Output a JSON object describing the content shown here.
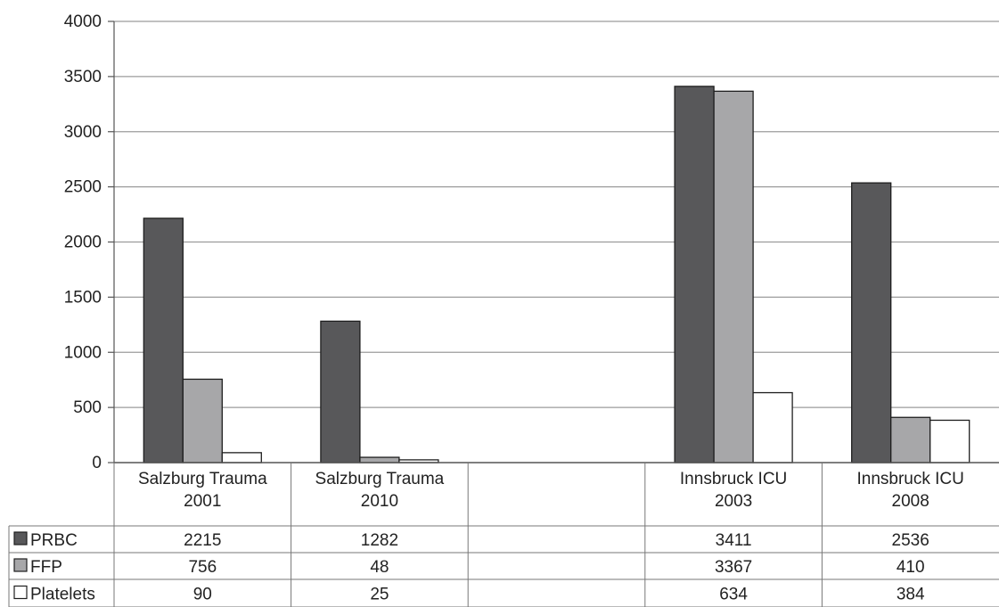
{
  "chart_data": {
    "type": "bar",
    "categories": [
      [
        "Salzburg Trauma",
        "2001"
      ],
      [
        "Salzburg Trauma",
        "2010"
      ],
      [
        "",
        ""
      ],
      [
        "Innsbruck ICU",
        "2003"
      ],
      [
        "Innsbruck ICU",
        "2008"
      ]
    ],
    "series": [
      {
        "name": "PRBC",
        "color": "#58585a",
        "values": [
          2215,
          1282,
          null,
          3411,
          2536
        ]
      },
      {
        "name": "FFP",
        "color": "#a7a7a9",
        "values": [
          756,
          48,
          null,
          3367,
          410
        ]
      },
      {
        "name": "Platelets",
        "color": "#ffffff",
        "values": [
          90,
          25,
          null,
          634,
          384
        ]
      }
    ],
    "ylim": [
      0,
      4000
    ],
    "yticks": [
      0,
      500,
      1000,
      1500,
      2000,
      2500,
      3000,
      3500,
      4000
    ],
    "grid": true,
    "legend": "data-table"
  }
}
